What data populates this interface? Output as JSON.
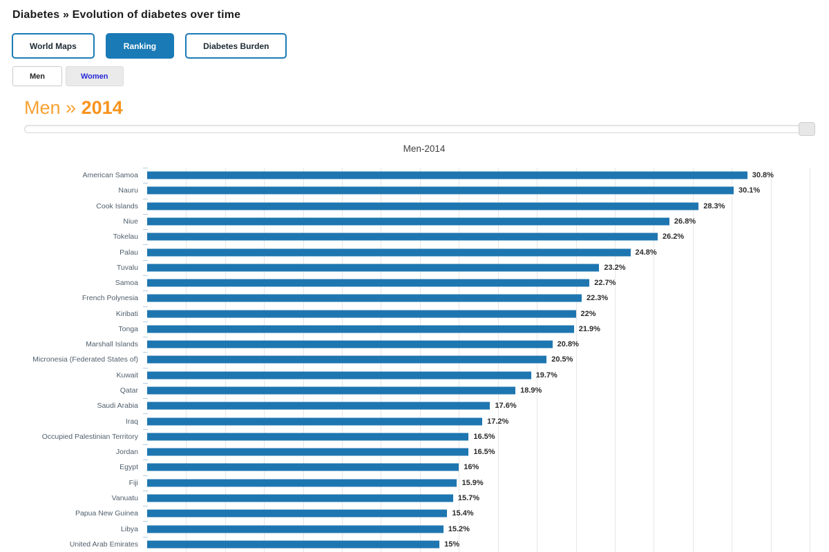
{
  "page_title": "Diabetes » Evolution of diabetes over time",
  "nav_tabs": {
    "world_maps": "World Maps",
    "ranking": "Ranking",
    "diabetes_burden": "Diabetes Burden"
  },
  "gender_tabs": {
    "men": "Men",
    "women": "Women"
  },
  "heading": {
    "prefix": "Men »",
    "year": "2014"
  },
  "slider": {
    "handle_position_percent": 100
  },
  "colors": {
    "accent_blue": "#1a7ab5",
    "bar_blue": "#1e76b0",
    "heading_orange": "#f7941e",
    "heading_orange_light": "#f7a232",
    "women_link_blue": "#2626d9",
    "gridline_gray": "#e6e6e6",
    "tick_blue": "#b5cbde"
  },
  "chart_data": {
    "type": "bar",
    "orientation": "horizontal",
    "title": "Men-2014",
    "xlabel": "",
    "ylabel": "",
    "xlim": [
      0,
      34
    ],
    "gridline_step": 2,
    "grid": true,
    "legend": false,
    "categories": [
      "American Samoa",
      "Nauru",
      "Cook Islands",
      "Niue",
      "Tokelau",
      "Palau",
      "Tuvalu",
      "Samoa",
      "French Polynesia",
      "Kiribati",
      "Tonga",
      "Marshall Islands",
      "Micronesia (Federated States of)",
      "Kuwait",
      "Qatar",
      "Saudi Arabia",
      "Iraq",
      "Occupied Palestinian Territory",
      "Jordan",
      "Egypt",
      "Fiji",
      "Vanuatu",
      "Papua New Guinea",
      "Libya",
      "United Arab Emirates"
    ],
    "values": [
      30.8,
      30.1,
      28.3,
      26.8,
      26.2,
      24.8,
      23.2,
      22.7,
      22.3,
      22,
      21.9,
      20.8,
      20.5,
      19.7,
      18.9,
      17.6,
      17.2,
      16.5,
      16.5,
      16,
      15.9,
      15.7,
      15.4,
      15.2,
      15
    ],
    "value_labels": [
      "30.8%",
      "30.1%",
      "28.3%",
      "26.8%",
      "26.2%",
      "24.8%",
      "23.2%",
      "22.7%",
      "22.3%",
      "22%",
      "21.9%",
      "20.8%",
      "20.5%",
      "19.7%",
      "18.9%",
      "17.6%",
      "17.2%",
      "16.5%",
      "16.5%",
      "16%",
      "15.9%",
      "15.7%",
      "15.4%",
      "15.2%",
      "15%"
    ]
  }
}
